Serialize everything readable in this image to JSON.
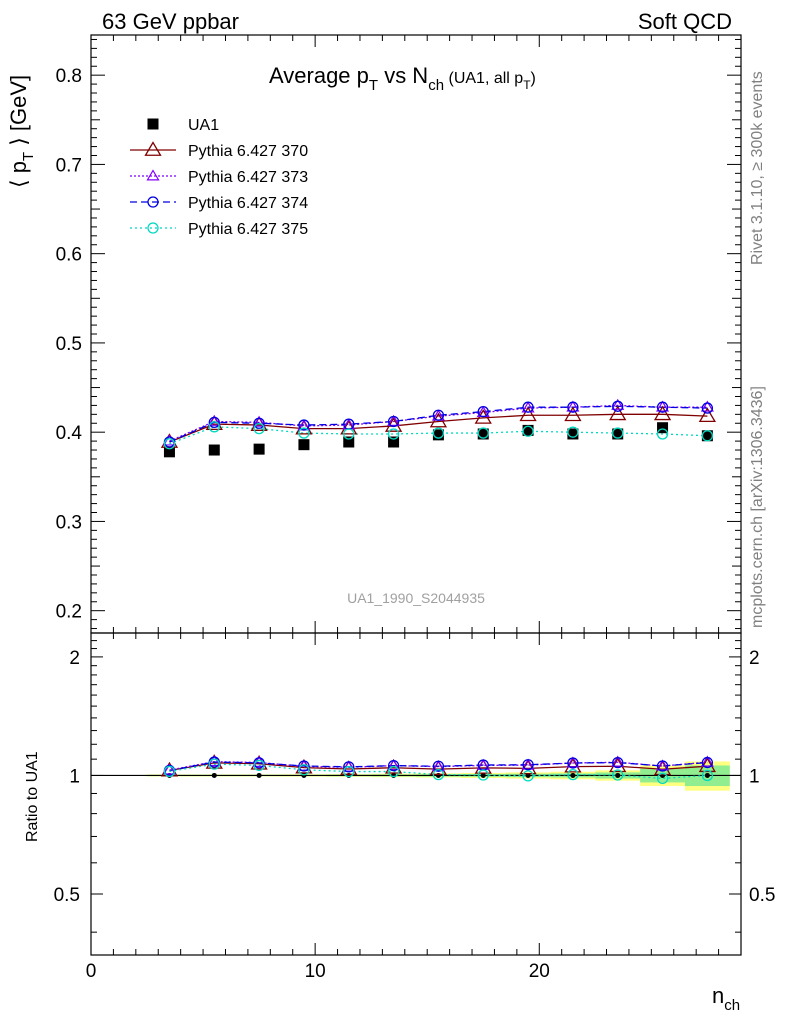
{
  "header": {
    "left": "63 GeV ppbar",
    "right": "Soft QCD"
  },
  "side_labels": {
    "rivet": "Rivet 3.1.10, ≥ 300k events",
    "mcplots": "mcplots.cern.ch [arXiv:1306.3436]"
  },
  "watermark": "UA1_1990_S2044935",
  "chart_data": {
    "type": "scatter",
    "title": {
      "main": "Average p",
      "main_sub": "T",
      "vs": " vs N",
      "vs_sub": "ch",
      "tail": " (UA1, all p",
      "tail_sub": "T",
      "tail_end": ")"
    },
    "ylabel": {
      "open": "⟨ p",
      "sub": "T",
      "close": " ⟩ [GeV]"
    },
    "xlabel": {
      "main": "n",
      "sub": "ch"
    },
    "ratio_ylabel": "Ratio to UA1",
    "xlim": [
      0,
      29
    ],
    "ylim": [
      0.175,
      0.845
    ],
    "ratio_ylim": [
      0.35,
      2.3
    ],
    "x_ticks": [
      0,
      10,
      20
    ],
    "x_tick_labels": [
      "0",
      "10",
      "20"
    ],
    "y_ticks": [
      0.2,
      0.3,
      0.4,
      0.5,
      0.6,
      0.7,
      0.8
    ],
    "y_tick_labels": [
      "0.2",
      "0.3",
      "0.4",
      "0.5",
      "0.6",
      "0.7",
      "0.8"
    ],
    "ratio_ticks": [
      0.5,
      1,
      2
    ],
    "ratio_tick_labels": [
      "0.5",
      "1",
      "2"
    ],
    "x": [
      3.5,
      5.5,
      7.5,
      9.5,
      11.5,
      13.5,
      15.5,
      17.5,
      19.5,
      21.5,
      23.5,
      25.5,
      27.5
    ],
    "data": {
      "name": "UA1",
      "values": [
        0.378,
        0.38,
        0.381,
        0.386,
        0.389,
        0.389,
        0.397,
        0.398,
        0.402,
        0.398,
        0.398,
        0.405,
        0.396
      ]
    },
    "series": [
      {
        "name": "Pythia 6.427 370",
        "color": "#800000",
        "marker": "triangle",
        "dash": "",
        "values": [
          0.389,
          0.409,
          0.408,
          0.404,
          0.404,
          0.407,
          0.412,
          0.416,
          0.419,
          0.419,
          0.42,
          0.42,
          0.418
        ]
      },
      {
        "name": "Pythia 6.427 373",
        "color": "#8000ff",
        "marker": "triangle-small",
        "dash": "2,2",
        "values": [
          0.39,
          0.412,
          0.411,
          0.407,
          0.408,
          0.412,
          0.418,
          0.422,
          0.427,
          0.428,
          0.43,
          0.428,
          0.428
        ]
      },
      {
        "name": "Pythia 6.427 374",
        "color": "#0000e0",
        "marker": "circle",
        "dash": "7,4",
        "values": [
          0.389,
          0.411,
          0.41,
          0.408,
          0.409,
          0.412,
          0.419,
          0.423,
          0.428,
          0.428,
          0.429,
          0.428,
          0.427
        ]
      },
      {
        "name": "Pythia 6.427 375",
        "color": "#00d8c0",
        "marker": "circle",
        "dash": "2,3",
        "values": [
          0.387,
          0.406,
          0.404,
          0.399,
          0.398,
          0.398,
          0.399,
          0.399,
          0.401,
          0.4,
          0.399,
          0.398,
          0.396
        ]
      }
    ],
    "ratio_band": {
      "inner_color": "#90ee90",
      "outer_color": "#ffff80",
      "x_lo": [
        2.5,
        4.5,
        6.5,
        8.5,
        10.5,
        12.5,
        14.5,
        16.5,
        18.5,
        20.5,
        22.5,
        24.5,
        26.5
      ],
      "x_hi": [
        4.5,
        6.5,
        8.5,
        10.5,
        12.5,
        14.5,
        16.5,
        18.5,
        20.5,
        22.5,
        24.5,
        26.5,
        28.5
      ],
      "inner": [
        0.004,
        0.004,
        0.004,
        0.004,
        0.005,
        0.006,
        0.007,
        0.008,
        0.01,
        0.012,
        0.018,
        0.04,
        0.06
      ],
      "outer": [
        0.006,
        0.006,
        0.006,
        0.007,
        0.008,
        0.01,
        0.012,
        0.015,
        0.018,
        0.022,
        0.03,
        0.06,
        0.085
      ]
    },
    "legend_position": "top-left"
  }
}
